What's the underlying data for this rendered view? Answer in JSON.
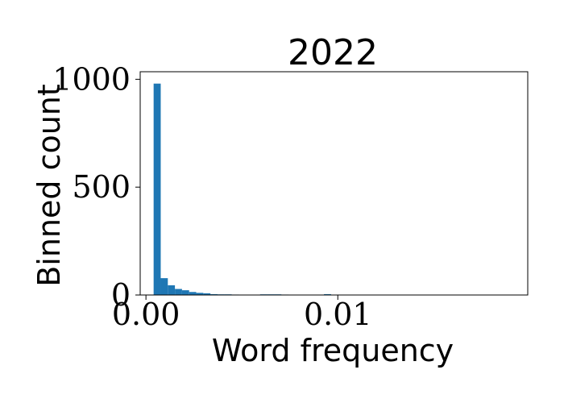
{
  "chart_data": {
    "type": "bar",
    "title": "2022",
    "xlabel": "Word frequency",
    "ylabel": "Binned count",
    "xlim": [
      -0.0003,
      0.0199
    ],
    "ylim": [
      0,
      1035
    ],
    "x_ticks": [
      {
        "value": 0.0,
        "label": "0.00"
      },
      {
        "value": 0.01,
        "label": "0.01"
      }
    ],
    "y_ticks": [
      {
        "value": 0,
        "label": "0"
      },
      {
        "value": 500,
        "label": "500"
      },
      {
        "value": 1000,
        "label": "1000"
      }
    ],
    "bar_color": "#1f77b4",
    "bin_width": 0.00037,
    "bins": [
      {
        "x": 0.0004,
        "count": 980
      },
      {
        "x": 0.00077,
        "count": 78
      },
      {
        "x": 0.00114,
        "count": 45
      },
      {
        "x": 0.00151,
        "count": 28
      },
      {
        "x": 0.00188,
        "count": 22
      },
      {
        "x": 0.00225,
        "count": 14
      },
      {
        "x": 0.00262,
        "count": 10
      },
      {
        "x": 0.00299,
        "count": 8
      },
      {
        "x": 0.00336,
        "count": 4
      },
      {
        "x": 0.00373,
        "count": 3
      },
      {
        "x": 0.0041,
        "count": 3
      },
      {
        "x": 0.00447,
        "count": 2
      },
      {
        "x": 0.00484,
        "count": 1
      },
      {
        "x": 0.00521,
        "count": 1
      },
      {
        "x": 0.00558,
        "count": 1
      },
      {
        "x": 0.00595,
        "count": 3
      },
      {
        "x": 0.00632,
        "count": 3
      },
      {
        "x": 0.00669,
        "count": 3
      },
      {
        "x": 0.00706,
        "count": 2
      },
      {
        "x": 0.00743,
        "count": 1
      },
      {
        "x": 0.0078,
        "count": 1
      },
      {
        "x": 0.00817,
        "count": 1
      },
      {
        "x": 0.00854,
        "count": 1
      },
      {
        "x": 0.00891,
        "count": 1
      },
      {
        "x": 0.00928,
        "count": 4
      },
      {
        "x": 0.00965,
        "count": 1
      },
      {
        "x": 0.01002,
        "count": 1
      }
    ]
  }
}
